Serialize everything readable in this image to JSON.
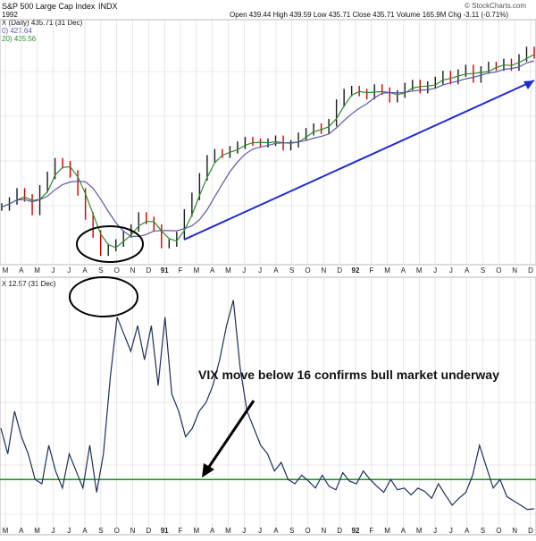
{
  "header": {
    "title_fragment": "S&P 500 Large Cap Index",
    "exchange": "INDX",
    "year": "1992",
    "ohlc_line": "Open 439.44  High 439.59  Low 435.71  Close 435.71  Volume 165.9M  Chg -3.11 (-0.71%)",
    "source": "© StockCharts.com",
    "price_legend": "X (Daily) 435.71 (31 Dec)",
    "ma_legend_1": "0) 427.64",
    "ma_legend_2": "20) 435.56",
    "vix_legend": "X 12.57 (31 Dec)"
  },
  "colors": {
    "price_up": "#1a1a1a",
    "price_down": "#cc0000",
    "ma_short": "#2e8b2e",
    "ma_long": "#5a5aa8",
    "trend_arrow": "#1e2ad6",
    "vix_line": "#1f2f5a",
    "vix_threshold": "#1e8a1e",
    "grid": "#d8d8d8",
    "circle": "#000000"
  },
  "annotation": {
    "text": "VIX move below 16 confirms bull market underway"
  },
  "chart_data": [
    {
      "type": "line",
      "panel": "price",
      "title": "S&P 500 Large Cap Index",
      "x_label_axis": [
        "M",
        "A",
        "M",
        "J",
        "J",
        "A",
        "S",
        "O",
        "N",
        "D",
        "91",
        "F",
        "M",
        "A",
        "M",
        "J",
        "J",
        "A",
        "S",
        "O",
        "N",
        "D",
        "92",
        "F",
        "M",
        "A",
        "M",
        "J",
        "J",
        "A",
        "S",
        "O",
        "N",
        "D"
      ],
      "series": [
        {
          "name": "Price",
          "values": [
            336,
            340,
            346,
            342,
            333,
            348,
            357,
            366,
            364,
            358,
            346,
            330,
            318,
            306,
            309,
            312,
            318,
            322,
            330,
            327,
            322,
            311,
            312,
            317,
            332,
            343,
            356,
            368,
            372,
            371,
            374,
            377,
            380,
            379,
            378,
            379,
            381,
            376,
            378,
            383,
            386,
            389,
            387,
            392,
            405,
            412,
            414,
            412,
            410,
            415,
            413,
            408,
            411,
            416,
            418,
            414,
            417,
            420,
            424,
            420,
            425,
            428,
            421,
            427,
            430,
            429,
            432,
            429,
            435,
            440,
            437
          ]
        }
      ],
      "ylim": [
        300,
        445
      ],
      "grid": true
    },
    {
      "type": "line",
      "panel": "vix",
      "x_label_axis": [
        "M",
        "A",
        "M",
        "J",
        "J",
        "A",
        "S",
        "O",
        "N",
        "D",
        "91",
        "F",
        "M",
        "A",
        "M",
        "J",
        "J",
        "A",
        "S",
        "O",
        "N",
        "D",
        "92",
        "F",
        "M",
        "A",
        "M",
        "J",
        "J",
        "A",
        "S",
        "O",
        "N",
        "D"
      ],
      "series": [
        {
          "name": "VIX",
          "values": [
            22,
            19,
            24,
            21,
            19,
            16,
            15.5,
            20,
            17,
            15,
            19,
            17,
            15,
            20,
            14.5,
            19,
            28,
            35,
            33,
            31,
            34,
            30,
            34,
            27,
            35,
            26,
            24,
            21,
            22,
            24,
            25,
            27,
            30,
            34,
            37,
            29,
            24,
            22,
            20,
            19,
            17,
            18,
            16,
            15.5,
            16.5,
            15.8,
            15,
            16.5,
            15.2,
            14.8,
            16.8,
            15.8,
            15.5,
            17,
            16,
            15.2,
            14.5,
            16,
            14.8,
            15,
            14.2,
            15,
            14.6,
            13.8,
            15.5,
            14.2,
            13,
            13.8,
            14.5,
            16.5,
            20,
            17.5,
            15,
            16,
            14,
            13.5,
            13,
            12.5,
            12.57
          ],
          "threshold": 16
        }
      ],
      "grid": true
    }
  ]
}
